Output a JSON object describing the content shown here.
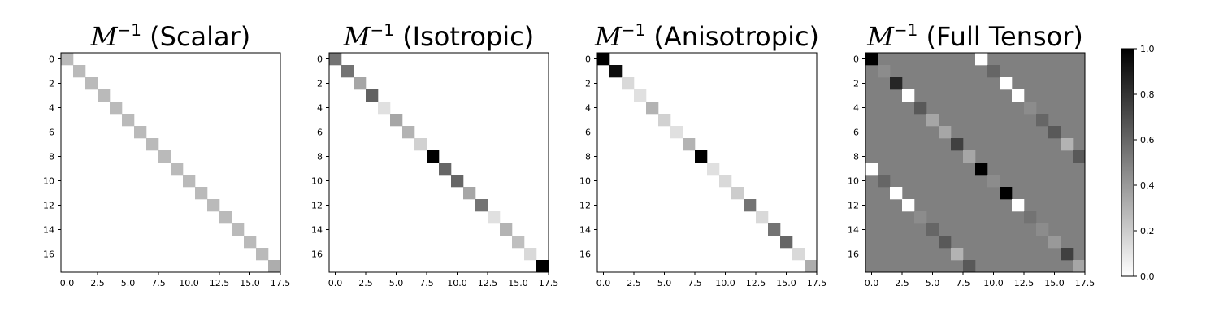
{
  "chart_data": [
    {
      "type": "heatmap",
      "title_symbol": "M",
      "title_exponent": "−1",
      "title_text": "(Scalar)",
      "size": 18,
      "colormap": "gray_r",
      "clim": [
        0,
        1
      ],
      "xticks": [
        "0.0",
        "2.5",
        "5.0",
        "7.5",
        "10.0",
        "12.5",
        "15.0",
        "17.5"
      ],
      "yticks": [
        "0",
        "2",
        "4",
        "6",
        "8",
        "10",
        "12",
        "14",
        "16"
      ],
      "background_value": 0,
      "diagonal": [
        0.27,
        0.27,
        0.27,
        0.27,
        0.27,
        0.27,
        0.27,
        0.27,
        0.27,
        0.27,
        0.27,
        0.27,
        0.27,
        0.27,
        0.27,
        0.27,
        0.27,
        0.32
      ],
      "offdiagonal": []
    },
    {
      "type": "heatmap",
      "title_symbol": "M",
      "title_exponent": "−1",
      "title_text": "(Isotropic)",
      "size": 18,
      "colormap": "gray_r",
      "clim": [
        0,
        1
      ],
      "xticks": [
        "0.0",
        "2.5",
        "5.0",
        "7.5",
        "10.0",
        "12.5",
        "15.0",
        "17.5"
      ],
      "yticks": [
        "0",
        "2",
        "4",
        "6",
        "8",
        "10",
        "12",
        "14",
        "16"
      ],
      "background_value": 0,
      "diagonal": [
        0.55,
        0.55,
        0.35,
        0.62,
        0.12,
        0.35,
        0.3,
        0.18,
        1.0,
        0.6,
        0.6,
        0.35,
        0.55,
        0.12,
        0.3,
        0.25,
        0.15,
        1.0
      ],
      "offdiagonal": []
    },
    {
      "type": "heatmap",
      "title_symbol": "M",
      "title_exponent": "−1",
      "title_text": "(Anisotropic)",
      "size": 18,
      "colormap": "gray_r",
      "clim": [
        0,
        1
      ],
      "xticks": [
        "0.0",
        "2.5",
        "5.0",
        "7.5",
        "10.0",
        "12.5",
        "15.0",
        "17.5"
      ],
      "yticks": [
        "0",
        "2",
        "4",
        "6",
        "8",
        "10",
        "12",
        "14",
        "16"
      ],
      "background_value": 0,
      "diagonal": [
        1.0,
        0.95,
        0.15,
        0.12,
        0.3,
        0.18,
        0.12,
        0.3,
        1.0,
        0.12,
        0.15,
        0.2,
        0.55,
        0.15,
        0.55,
        0.6,
        0.15,
        0.32
      ],
      "offdiagonal": []
    },
    {
      "type": "heatmap",
      "title_symbol": "M",
      "title_exponent": "−1",
      "title_text": "(Full Tensor)",
      "size": 18,
      "colormap": "gray_r",
      "clim": [
        0,
        1
      ],
      "xticks": [
        "0.0",
        "2.5",
        "5.0",
        "7.5",
        "10.0",
        "12.5",
        "15.0",
        "17.5"
      ],
      "yticks": [
        "0",
        "2",
        "4",
        "6",
        "8",
        "10",
        "12",
        "14",
        "16"
      ],
      "background_value": 0.5,
      "diagonal": [
        1.0,
        0.45,
        0.85,
        0.0,
        0.65,
        0.35,
        0.35,
        0.75,
        0.35,
        1.0,
        0.45,
        1.0,
        0.0,
        0.55,
        0.45,
        0.4,
        0.75,
        0.35
      ],
      "offdiagonal": [
        {
          "row": 0,
          "col": 9,
          "value": 0.0
        },
        {
          "row": 9,
          "col": 0,
          "value": 0.0
        },
        {
          "row": 1,
          "col": 10,
          "value": 0.6
        },
        {
          "row": 10,
          "col": 1,
          "value": 0.6
        },
        {
          "row": 2,
          "col": 11,
          "value": 0.0
        },
        {
          "row": 11,
          "col": 2,
          "value": 0.0
        },
        {
          "row": 3,
          "col": 12,
          "value": 0.0
        },
        {
          "row": 12,
          "col": 3,
          "value": 0.0
        },
        {
          "row": 4,
          "col": 13,
          "value": 0.45
        },
        {
          "row": 13,
          "col": 4,
          "value": 0.45
        },
        {
          "row": 5,
          "col": 14,
          "value": 0.6
        },
        {
          "row": 14,
          "col": 5,
          "value": 0.6
        },
        {
          "row": 6,
          "col": 15,
          "value": 0.65
        },
        {
          "row": 15,
          "col": 6,
          "value": 0.65
        },
        {
          "row": 7,
          "col": 16,
          "value": 0.3
        },
        {
          "row": 16,
          "col": 7,
          "value": 0.3
        },
        {
          "row": 8,
          "col": 17,
          "value": 0.65
        },
        {
          "row": 17,
          "col": 8,
          "value": 0.65
        }
      ]
    }
  ],
  "colorbar": {
    "ticks": [
      "0.0",
      "0.2",
      "0.4",
      "0.6",
      "0.8",
      "1.0"
    ],
    "range": [
      0,
      1
    ],
    "colormap": "gray_r"
  }
}
